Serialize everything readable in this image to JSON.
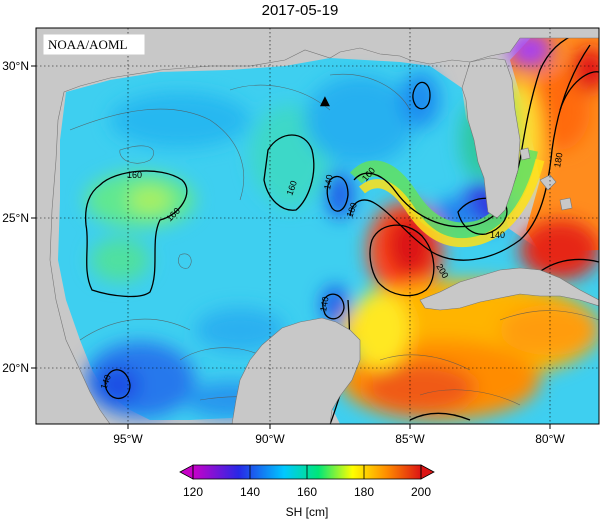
{
  "title": "2017-05-19",
  "credit": "NOAA/AOML",
  "axes": {
    "lon_ticks": [
      "95°W",
      "90°W",
      "85°W",
      "80°W"
    ],
    "lat_ticks": [
      "30°N",
      "25°N",
      "20°N"
    ],
    "lon_range": [
      -98,
      -78
    ],
    "lat_range": [
      18,
      31
    ]
  },
  "contour_labels": [
    "160",
    "160",
    "160",
    "140",
    "160",
    "180",
    "200",
    "140",
    "180",
    "140",
    "140"
  ],
  "colorbar": {
    "ticks": [
      "120",
      "140",
      "160",
      "180",
      "200"
    ],
    "label": "SH [cm]",
    "range": [
      120,
      200
    ]
  },
  "colors": {
    "land": "#c8c8c8",
    "stops": [
      "#c800c8",
      "#2828e6",
      "#00c8ff",
      "#00e678",
      "#ffff00",
      "#ff8c00",
      "#dc1414"
    ]
  },
  "marker": {
    "lon": -88.0,
    "lat": 28.8,
    "shape": "triangle"
  }
}
